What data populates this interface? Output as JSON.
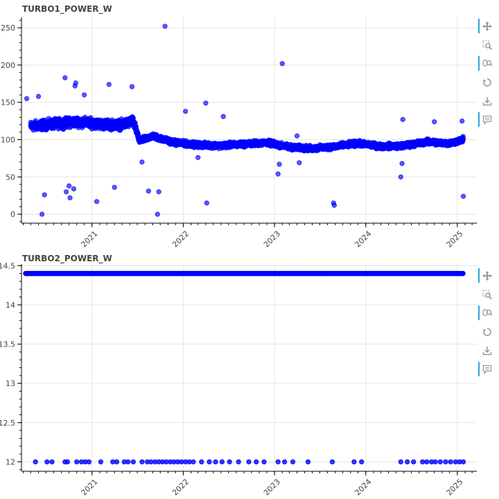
{
  "chart_data": [
    {
      "type": "scatter",
      "title": "TURBO1_POWER_W",
      "xlabel": "",
      "ylabel": "",
      "x_ticks": [
        "2021",
        "2022",
        "2023",
        "2024",
        "2025"
      ],
      "y_ticks": [
        0,
        50,
        100,
        150,
        200,
        250
      ],
      "xlim": [
        "2020-03-25",
        "2025-03-20"
      ],
      "ylim": [
        -12,
        264
      ],
      "grid": true,
      "marker_color": "#0000ff",
      "series": [
        {
          "trend": [
            [
              "2020-05-01",
              118
            ],
            [
              "2020-07-01",
              120
            ],
            [
              "2020-09-01",
              122
            ],
            [
              "2020-11-01",
              124
            ],
            [
              "2021-01-01",
              122
            ],
            [
              "2021-03-01",
              120
            ],
            [
              "2021-05-01",
              120
            ],
            [
              "2021-06-15",
              125
            ],
            [
              "2021-07-10",
              98
            ],
            [
              "2021-09-01",
              105
            ],
            [
              "2021-10-15",
              100
            ],
            [
              "2021-12-01",
              96
            ],
            [
              "2022-03-01",
              93
            ],
            [
              "2022-06-01",
              92
            ],
            [
              "2022-09-01",
              94
            ],
            [
              "2022-12-01",
              96
            ],
            [
              "2023-03-01",
              90
            ],
            [
              "2023-06-01",
              88
            ],
            [
              "2023-09-01",
              91
            ],
            [
              "2023-12-01",
              95
            ],
            [
              "2024-03-01",
              91
            ],
            [
              "2024-06-01",
              92
            ],
            [
              "2024-09-01",
              97
            ],
            [
              "2024-12-01",
              95
            ],
            [
              "2025-01-25",
              100
            ]
          ],
          "outliers": [
            [
              "2020-04-15",
              155
            ],
            [
              "2020-06-01",
              158
            ],
            [
              "2020-06-15",
              0
            ],
            [
              "2020-06-25",
              26
            ],
            [
              "2020-09-15",
              183
            ],
            [
              "2020-09-20",
              30
            ],
            [
              "2020-10-01",
              38
            ],
            [
              "2020-10-05",
              22
            ],
            [
              "2020-10-20",
              34
            ],
            [
              "2020-10-25",
              172
            ],
            [
              "2020-10-28",
              176
            ],
            [
              "2020-12-01",
              160
            ],
            [
              "2021-01-20",
              17
            ],
            [
              "2021-03-10",
              174
            ],
            [
              "2021-04-01",
              36
            ],
            [
              "2021-06-10",
              171
            ],
            [
              "2021-08-15",
              31
            ],
            [
              "2021-09-20",
              0
            ],
            [
              "2021-09-25",
              30
            ],
            [
              "2021-10-20",
              252
            ],
            [
              "2021-07-20",
              70
            ],
            [
              "2022-01-10",
              138
            ],
            [
              "2022-03-01",
              76
            ],
            [
              "2022-04-01",
              149
            ],
            [
              "2022-04-05",
              15
            ],
            [
              "2022-06-10",
              131
            ],
            [
              "2023-01-15",
              54
            ],
            [
              "2023-01-20",
              67
            ],
            [
              "2023-02-01",
              202
            ],
            [
              "2023-04-01",
              105
            ],
            [
              "2023-04-10",
              69
            ],
            [
              "2023-08-25",
              15
            ],
            [
              "2023-08-28",
              12
            ],
            [
              "2024-05-20",
              50
            ],
            [
              "2024-05-25",
              68
            ],
            [
              "2024-05-28",
              127
            ],
            [
              "2024-10-01",
              124
            ],
            [
              "2025-01-20",
              125
            ],
            [
              "2025-01-25",
              24
            ]
          ]
        }
      ]
    },
    {
      "type": "scatter",
      "title": "TURBO2_POWER_W",
      "xlabel": "",
      "ylabel": "",
      "x_ticks": [
        "2021",
        "2022",
        "2023",
        "2024",
        "2025"
      ],
      "y_ticks": [
        12,
        12.5,
        13,
        13.5,
        14,
        14.5
      ],
      "xlim": [
        "2020-03-25",
        "2025-03-20"
      ],
      "ylim": [
        11.88,
        14.52
      ],
      "grid": true,
      "marker_color": "#0000ff",
      "series": [
        {
          "band": {
            "value": 14.4,
            "from": "2020-04-10",
            "to": "2025-01-25"
          },
          "points_at_12": [
            "2020-05-20",
            "2020-07-05",
            "2020-07-25",
            "2020-09-15",
            "2020-09-25",
            "2020-11-01",
            "2020-11-20",
            "2020-12-05",
            "2020-12-20",
            "2021-02-05",
            "2021-03-25",
            "2021-04-10",
            "2021-05-10",
            "2021-05-25",
            "2021-06-15",
            "2021-07-20",
            "2021-08-10",
            "2021-08-25",
            "2021-09-10",
            "2021-09-25",
            "2021-10-10",
            "2021-10-25",
            "2021-11-10",
            "2021-11-25",
            "2021-12-10",
            "2021-12-25",
            "2022-01-10",
            "2022-01-25",
            "2022-02-10",
            "2022-03-15",
            "2022-04-15",
            "2022-05-10",
            "2022-06-05",
            "2022-07-05",
            "2022-08-10",
            "2022-09-20",
            "2022-10-20",
            "2022-11-20",
            "2023-01-15",
            "2023-02-10",
            "2023-03-15",
            "2023-05-15",
            "2023-08-20",
            "2023-11-15",
            "2023-12-15",
            "2024-05-20",
            "2024-06-15",
            "2024-07-10",
            "2024-08-15",
            "2024-09-01",
            "2024-09-20",
            "2024-10-05",
            "2024-10-25",
            "2024-11-15",
            "2024-12-05",
            "2024-12-25",
            "2025-01-10",
            "2025-01-25"
          ]
        }
      ]
    }
  ],
  "toolbar": {
    "tools": [
      {
        "icon": "pan-icon",
        "active": true
      },
      {
        "icon": "box-zoom-icon",
        "active": false
      },
      {
        "icon": "wheel-zoom-icon",
        "active": true
      },
      {
        "icon": "reset-icon",
        "active": false
      },
      {
        "icon": "save-icon",
        "active": false
      },
      {
        "icon": "hover-icon",
        "active": true
      }
    ]
  }
}
